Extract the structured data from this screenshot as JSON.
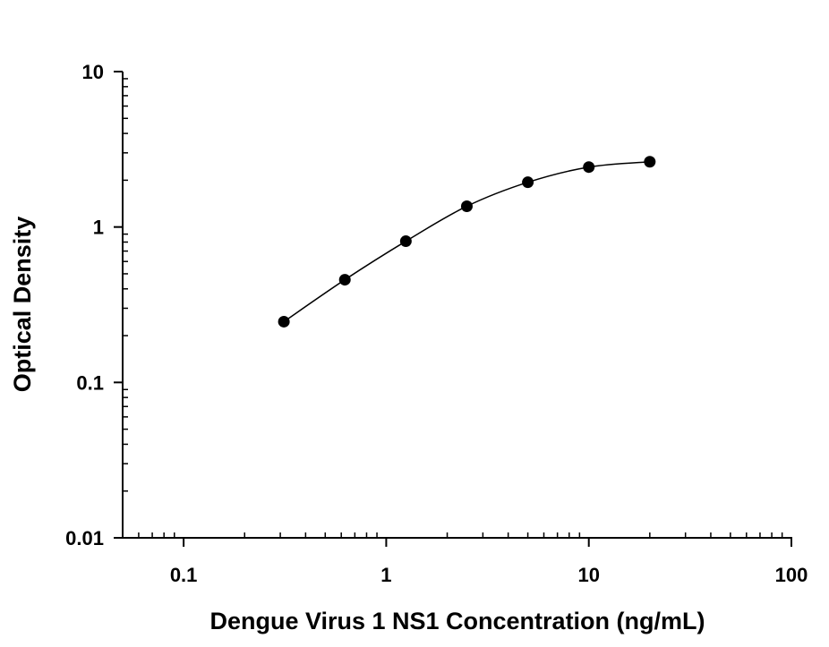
{
  "chart_data": {
    "type": "scatter",
    "title": "",
    "xlabel": "Dengue Virus 1 NS1 Concentration (ng/mL)",
    "ylabel": "Optical Density",
    "x_scale": "log",
    "y_scale": "log",
    "xlim": [
      0.05,
      100
    ],
    "ylim": [
      0.01,
      10
    ],
    "x_ticks": [
      0.1,
      1,
      10,
      100
    ],
    "x_tick_labels": [
      "0.1",
      "1",
      "10",
      "100"
    ],
    "y_ticks": [
      0.01,
      0.1,
      1,
      10
    ],
    "y_tick_labels": [
      "0.01",
      "0.1",
      "1",
      "10"
    ],
    "grid": false,
    "legend": "none",
    "series": [
      {
        "x": [
          0.3125,
          0.625,
          1.25,
          2.5,
          5,
          10,
          20
        ],
        "y": [
          0.246,
          0.458,
          0.81,
          1.36,
          1.94,
          2.43,
          2.63
        ],
        "marker": "filled-circle",
        "color": "#000000",
        "fit_curve": "smooth"
      }
    ]
  }
}
